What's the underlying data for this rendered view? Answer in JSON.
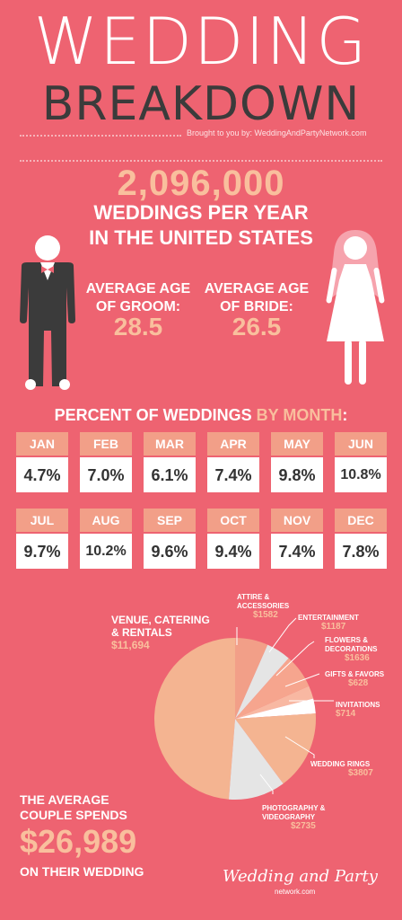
{
  "header": {
    "title_line1": "WEDDING",
    "title_line2": "BREAKDOWN",
    "brought_by": "Brought to you by: WeddingAndPartyNetwork.com"
  },
  "stats": {
    "weddings_count": "2,096,000",
    "weddings_line1": "WEDDINGS PER YEAR",
    "weddings_line2": "IN THE UNITED STATES",
    "groom_label_1": "AVERAGE AGE",
    "groom_label_2": "OF GROOM:",
    "groom_age": "28.5",
    "bride_label_1": "AVERAGE AGE",
    "bride_label_2": "OF BRIDE:",
    "bride_age": "26.5"
  },
  "months": {
    "heading_main": "PERCENT OF WEDDINGS ",
    "heading_accent": "BY MONTH",
    "heading_colon": ":",
    "items": [
      {
        "name": "JAN",
        "value": "4.7%"
      },
      {
        "name": "FEB",
        "value": "7.0%"
      },
      {
        "name": "MAR",
        "value": "6.1%"
      },
      {
        "name": "APR",
        "value": "7.4%"
      },
      {
        "name": "MAY",
        "value": "9.8%"
      },
      {
        "name": "JUN",
        "value": "10.8%"
      },
      {
        "name": "JUL",
        "value": "9.7%"
      },
      {
        "name": "AUG",
        "value": "10.2%"
      },
      {
        "name": "SEP",
        "value": "9.6%"
      },
      {
        "name": "OCT",
        "value": "9.4%"
      },
      {
        "name": "NOV",
        "value": "7.4%"
      },
      {
        "name": "DEC",
        "value": "7.8%"
      }
    ]
  },
  "spending": {
    "venue_line1": "VENUE, CATERING",
    "venue_line2": "& RENTALS",
    "venue_value": "$11,694",
    "attire_line1": "ATTIRE &",
    "attire_line2": "ACCESSORIES",
    "attire_value": "$1582",
    "entertainment_line1": "ENTERTAINMENT",
    "entertainment_value": "$1187",
    "flowers_line1": "FLOWERS &",
    "flowers_line2": "DECORATIONS",
    "flowers_value": "$1636",
    "gifts_line1": "GIFTS & FAVORS",
    "gifts_value": "$628",
    "invitations_line1": "INVITATIONS",
    "invitations_value": "$714",
    "rings_line1": "WEDDING RINGS",
    "rings_value": "$3807",
    "photo_line1": "PHOTOGRAPHY &",
    "photo_line2": "VIDEOGRAPHY",
    "photo_value": "$2735",
    "average_line1": "THE AVERAGE",
    "average_line2": "COUPLE SPENDS",
    "average_value": "$26,989",
    "average_line3": "ON THEIR WEDDING"
  },
  "footer": {
    "logo_text": "Wedding and Party",
    "logo_sub": "network.com"
  },
  "colors": {
    "background": "#EE6371",
    "accent": "#F9BF9D",
    "card_header": "#F29F88",
    "dark": "#3B3B3B"
  },
  "chart_data": {
    "type": "pie",
    "categories": [
      "Venue, Catering & Rentals",
      "Attire & Accessories",
      "Entertainment",
      "Flowers & Decorations",
      "Gifts & Favors",
      "Invitations",
      "Wedding Rings",
      "Photography & Videography"
    ],
    "values": [
      11694,
      1582,
      1187,
      1636,
      628,
      714,
      3807,
      2735
    ]
  }
}
